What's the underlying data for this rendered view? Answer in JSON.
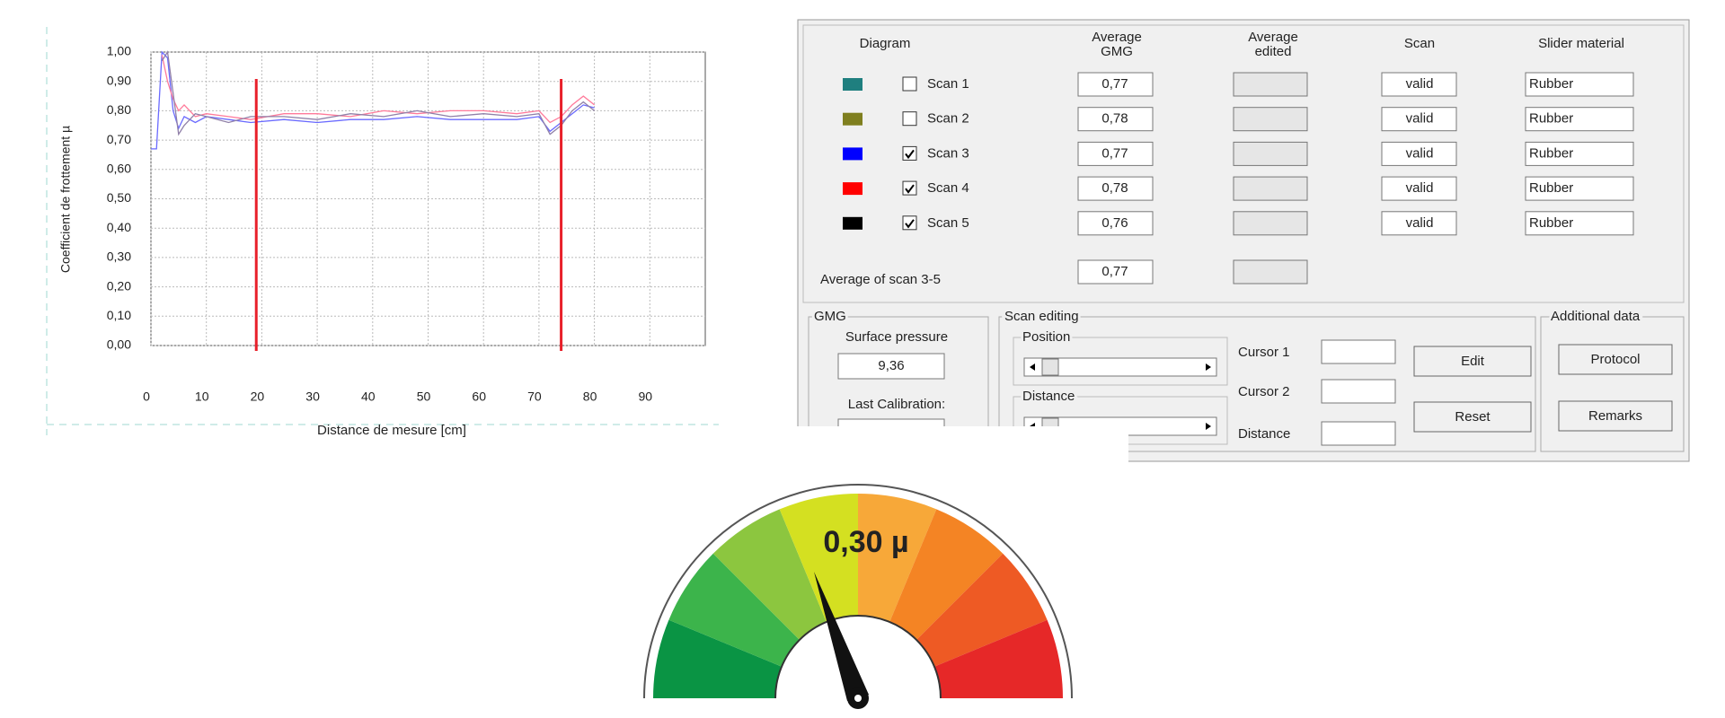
{
  "chart_data": {
    "type": "line",
    "y_label": "Coefficient de frottement µ",
    "x_label": "Distance de mesure [cm]",
    "x": [
      0,
      1,
      2,
      3,
      4,
      5,
      6,
      8,
      10,
      14,
      18,
      24,
      30,
      36,
      42,
      48,
      54,
      60,
      66,
      70,
      72,
      74,
      76,
      78,
      80
    ],
    "series": [
      {
        "color": "#6a6aff",
        "values": [
          0.67,
          0.67,
          1.0,
          0.98,
          0.8,
          0.74,
          0.78,
          0.76,
          0.78,
          0.77,
          0.76,
          0.77,
          0.76,
          0.77,
          0.77,
          0.78,
          0.77,
          0.77,
          0.77,
          0.78,
          0.73,
          0.76,
          0.79,
          0.82,
          0.81
        ]
      },
      {
        "color": "#ff7a9a",
        "values": [
          null,
          null,
          0.99,
          0.9,
          0.84,
          0.8,
          0.82,
          0.78,
          0.79,
          0.78,
          0.77,
          0.79,
          0.79,
          0.78,
          0.8,
          0.79,
          0.8,
          0.8,
          0.79,
          0.8,
          0.76,
          0.78,
          0.82,
          0.85,
          0.82
        ]
      },
      {
        "color": "#9080a8",
        "values": [
          null,
          null,
          0.97,
          1.0,
          0.86,
          0.72,
          0.75,
          0.79,
          0.78,
          0.76,
          0.78,
          0.78,
          0.77,
          0.79,
          0.78,
          0.8,
          0.78,
          0.79,
          0.78,
          0.79,
          0.72,
          0.75,
          0.8,
          0.83,
          0.8
        ]
      }
    ],
    "xlim": [
      0,
      100
    ],
    "ylim": [
      0,
      1
    ],
    "xticks": [
      0,
      10,
      20,
      30,
      40,
      50,
      60,
      70,
      80,
      90
    ],
    "yticks": [
      {
        "value": 0,
        "label": "0,00"
      },
      {
        "value": 0.1,
        "label": "0,10"
      },
      {
        "value": 0.2,
        "label": "0,20"
      },
      {
        "value": 0.3,
        "label": "0,30"
      },
      {
        "value": 0.4,
        "label": "0,40"
      },
      {
        "value": 0.5,
        "label": "0,50"
      },
      {
        "value": 0.6,
        "label": "0,60"
      },
      {
        "value": 0.7,
        "label": "0,70"
      },
      {
        "value": 0.8,
        "label": "0,80"
      },
      {
        "value": 0.9,
        "label": "0,90"
      },
      {
        "value": 1,
        "label": "1,00"
      }
    ],
    "grid": true,
    "cursors": [
      19,
      74
    ],
    "cursor_color": "#e8202a"
  },
  "panel": {
    "columns": [
      [
        "Diagram"
      ],
      [
        "Average",
        "GMG"
      ],
      [
        "Average",
        "edited"
      ],
      [
        "Scan"
      ],
      [
        "Slider material"
      ]
    ],
    "rows": [
      {
        "color": "#1f7f7f",
        "checked": false,
        "name": "Scan 1",
        "average": "0,77",
        "scan": "valid",
        "material": "Rubber"
      },
      {
        "color": "#7f7f1f",
        "checked": false,
        "name": "Scan 2",
        "average": "0,78",
        "scan": "valid",
        "material": "Rubber"
      },
      {
        "color": "#0000ff",
        "checked": true,
        "name": "Scan 3",
        "average": "0,77",
        "scan": "valid",
        "material": "Rubber"
      },
      {
        "color": "#ff0000",
        "checked": true,
        "name": "Scan 4",
        "average": "0,78",
        "scan": "valid",
        "material": "Rubber"
      },
      {
        "color": "#000000",
        "checked": true,
        "name": "Scan 5",
        "average": "0,76",
        "scan": "valid",
        "material": "Rubber"
      }
    ],
    "summary": {
      "label": "Average of scan 3-5",
      "value": "0,77"
    },
    "gmg": {
      "title": "GMG",
      "pressure_label": "Surface pressure",
      "pressure": "9,36",
      "calibration_label": "Last Calibration:"
    },
    "scan_editing": {
      "title": "Scan editing",
      "position": "Position",
      "distance_group": "Distance",
      "cursor1": "Cursor 1",
      "cursor2": "Cursor 2",
      "distance": "Distance",
      "edit": "Edit",
      "reset": "Reset"
    },
    "additional": {
      "title": "Additional data",
      "protocol": "Protocol",
      "remarks": "Remarks"
    }
  },
  "gauge": {
    "label": "0,30 µ"
  }
}
